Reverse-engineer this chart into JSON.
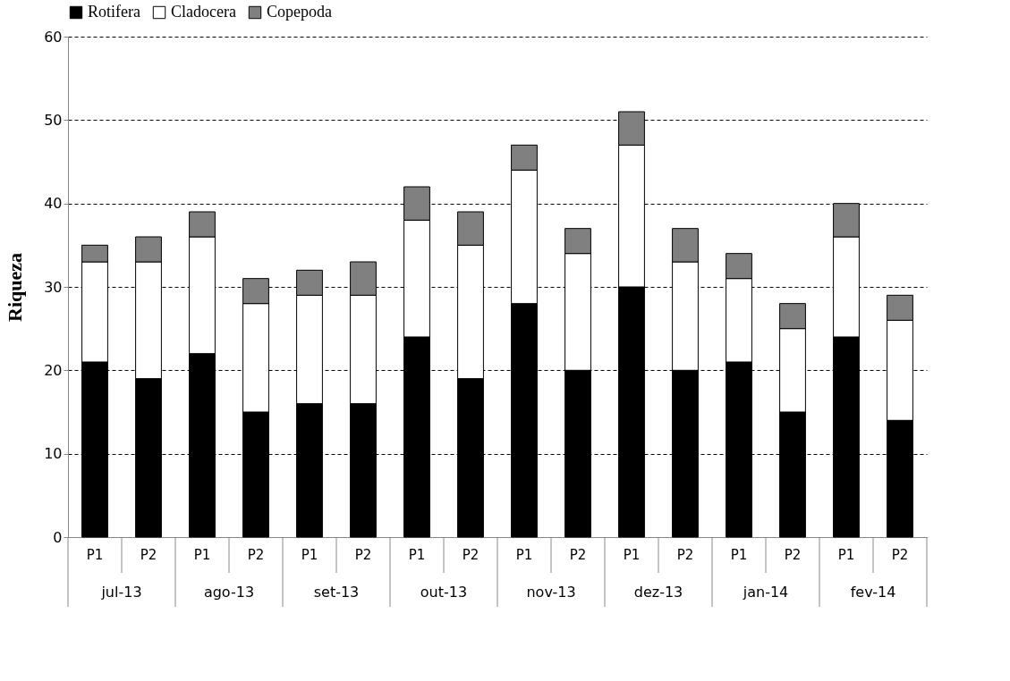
{
  "chart_data": {
    "type": "bar",
    "stacked": true,
    "ylabel": "Riqueza",
    "ylim": [
      0,
      60
    ],
    "yticks": [
      0,
      10,
      20,
      30,
      40,
      50,
      60
    ],
    "grid": "y",
    "legend": "top",
    "categories": [
      "P1",
      "P2",
      "P1",
      "P2",
      "P1",
      "P2",
      "P1",
      "P2",
      "P1",
      "P2",
      "P1",
      "P2",
      "P1",
      "P2",
      "P1",
      "P2"
    ],
    "annotations": [
      "jul-13",
      "ago-13",
      "set-13",
      "out-13",
      "nov-13",
      "dez-13",
      "jan-14",
      "fev-14"
    ],
    "series": [
      {
        "name": "Rotifera",
        "color": "#000000",
        "values": [
          21,
          19,
          22,
          15,
          16,
          16,
          24,
          19,
          28,
          20,
          30,
          20,
          21,
          15,
          24,
          14
        ]
      },
      {
        "name": "Cladocera",
        "color": "#ffffff",
        "values": [
          12,
          14,
          14,
          13,
          13,
          13,
          14,
          16,
          16,
          14,
          17,
          13,
          10,
          10,
          12,
          12
        ]
      },
      {
        "name": "Copepoda",
        "color": "#808080",
        "values": [
          2,
          3,
          3,
          3,
          3,
          4,
          4,
          4,
          3,
          3,
          4,
          4,
          3,
          3,
          4,
          3
        ]
      }
    ]
  }
}
